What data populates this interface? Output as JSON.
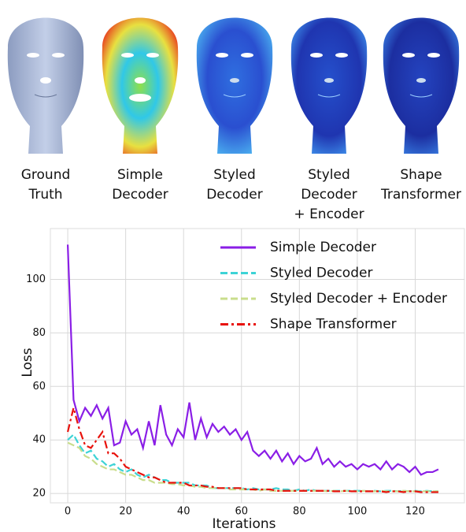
{
  "figure": {
    "captions": [
      [
        "Ground",
        "Truth"
      ],
      [
        "Simple",
        "Decoder"
      ],
      [
        "Styled",
        "Decoder"
      ],
      [
        "Styled",
        "Decoder",
        "+ Encoder"
      ],
      [
        "Shape",
        "Transformer"
      ]
    ]
  },
  "chart_data": {
    "type": "line",
    "xlabel": "Iterations",
    "ylabel": "Loss",
    "x": [
      0,
      2,
      4,
      6,
      8,
      10,
      12,
      14,
      16,
      18,
      20,
      22,
      24,
      26,
      28,
      30,
      32,
      34,
      36,
      38,
      40,
      42,
      44,
      46,
      48,
      50,
      52,
      54,
      56,
      58,
      60,
      62,
      64,
      66,
      68,
      70,
      72,
      74,
      76,
      78,
      80,
      82,
      84,
      86,
      88,
      90,
      92,
      94,
      96,
      98,
      100,
      102,
      104,
      106,
      108,
      110,
      112,
      114,
      116,
      118,
      120,
      122,
      124,
      126,
      128
    ],
    "series": [
      {
        "name": "Simple Decoder",
        "color": "#8a1ee6",
        "dash": "solid",
        "values": [
          113,
          55,
          47,
          52,
          49,
          53,
          48,
          52,
          38,
          39,
          47,
          42,
          44,
          37,
          47,
          38,
          53,
          42,
          38,
          44,
          41,
          54,
          40,
          48,
          41,
          46,
          43,
          45,
          42,
          44,
          40,
          43,
          36,
          34,
          36,
          33,
          36,
          32,
          35,
          31,
          34,
          32,
          33,
          37,
          31,
          33,
          30,
          32,
          30,
          31,
          29,
          31,
          30,
          31,
          29,
          32,
          29,
          31,
          30,
          28,
          30,
          27,
          28,
          28,
          29
        ]
      },
      {
        "name": "Styled Decoder",
        "color": "#3dd3d6",
        "dash": "dashed",
        "values": [
          40,
          42,
          38,
          35,
          36,
          33,
          32,
          30,
          31,
          29,
          28,
          29,
          27,
          26,
          27,
          26,
          25,
          25,
          24,
          24,
          24,
          24,
          23,
          23,
          23,
          22,
          22,
          22,
          22,
          22,
          22,
          21.5,
          22,
          21.5,
          21.5,
          21.5,
          22,
          21.5,
          21.5,
          21,
          21.5,
          21,
          21.5,
          21,
          21,
          21,
          21,
          21,
          21,
          21,
          21,
          21,
          20.8,
          21,
          20.8,
          21,
          21,
          20.8,
          21,
          20.8,
          21,
          20.8,
          21,
          20.8,
          20.8
        ]
      },
      {
        "name": "Styled Decoder + Encoder",
        "color": "#c9dd8c",
        "dash": "dashed",
        "values": [
          39,
          38,
          37,
          34,
          33,
          31,
          30,
          29,
          29,
          28,
          27,
          27,
          26,
          25,
          25,
          24,
          24,
          24,
          23.5,
          23.5,
          23,
          23,
          22.5,
          22.5,
          22,
          22,
          22,
          22,
          21.5,
          21.5,
          21.5,
          21.5,
          21.5,
          21,
          21.5,
          21,
          21,
          21,
          21,
          21,
          21,
          21,
          21,
          21,
          21,
          20.8,
          21,
          20.8,
          21,
          20.8,
          20.8,
          21,
          20.8,
          20.8,
          21,
          20.8,
          20.8,
          20.8,
          21,
          20.8,
          20.8,
          20.8,
          20.8,
          20.8,
          20.8
        ]
      },
      {
        "name": "Shape Transformer",
        "color": "#e8120c",
        "dash": "dashdot",
        "values": [
          43,
          52,
          44,
          38,
          37,
          40,
          43,
          35,
          35,
          33,
          30,
          29,
          28,
          27,
          26,
          26,
          25,
          24,
          24,
          24,
          24,
          23,
          23,
          23,
          22.5,
          22.5,
          22,
          22,
          22,
          22,
          22,
          21.5,
          21.5,
          21.5,
          21.5,
          21.5,
          21,
          21,
          21,
          21,
          21,
          21,
          21,
          21,
          21,
          21,
          20.8,
          20.8,
          21,
          20.8,
          20.8,
          20.8,
          20.8,
          20.8,
          20.8,
          20.5,
          20.8,
          20.8,
          20.5,
          20.8,
          20.8,
          20.5,
          20.5,
          20.5,
          20.5
        ]
      }
    ],
    "xlim": [
      -6,
      137
    ],
    "ylim": [
      16.5,
      119
    ],
    "xticks": [
      0,
      20,
      40,
      60,
      80,
      100,
      120
    ],
    "yticks": [
      20,
      40,
      60,
      80,
      100
    ],
    "grid": true,
    "legend": "upper right"
  }
}
